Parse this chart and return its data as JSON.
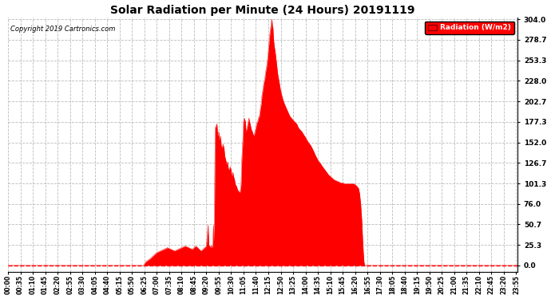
{
  "title": "Solar Radiation per Minute (24 Hours) 20191119",
  "copyright_text": "Copyright 2019 Cartronics.com",
  "legend_label": "Radiation (W/m2)",
  "fill_color": "#FF0000",
  "line_color": "#FF0000",
  "background_color": "#FFFFFF",
  "grid_color": "#AAAAAA",
  "y_ticks": [
    0.0,
    25.3,
    50.7,
    76.0,
    101.3,
    126.7,
    152.0,
    177.3,
    202.7,
    228.0,
    253.3,
    278.7,
    304.0
  ],
  "y_max": 304.0,
  "total_minutes": 1440,
  "dashed_hline_color": "#FF0000",
  "keypoints": [
    [
      0,
      0
    ],
    [
      384,
      0
    ],
    [
      385,
      2
    ],
    [
      390,
      5
    ],
    [
      400,
      8
    ],
    [
      410,
      12
    ],
    [
      420,
      16
    ],
    [
      430,
      18
    ],
    [
      440,
      20
    ],
    [
      450,
      22
    ],
    [
      460,
      20
    ],
    [
      470,
      18
    ],
    [
      480,
      20
    ],
    [
      490,
      22
    ],
    [
      500,
      24
    ],
    [
      510,
      22
    ],
    [
      520,
      20
    ],
    [
      525,
      22
    ],
    [
      530,
      24
    ],
    [
      535,
      22
    ],
    [
      540,
      20
    ],
    [
      545,
      18
    ],
    [
      550,
      20
    ],
    [
      555,
      22
    ],
    [
      560,
      24
    ],
    [
      565,
      50
    ],
    [
      567,
      25
    ],
    [
      570,
      24
    ],
    [
      572,
      22
    ],
    [
      575,
      25
    ],
    [
      577,
      22
    ],
    [
      578,
      24
    ],
    [
      580,
      50
    ],
    [
      582,
      30
    ],
    [
      585,
      170
    ],
    [
      590,
      175
    ],
    [
      592,
      160
    ],
    [
      595,
      165
    ],
    [
      597,
      155
    ],
    [
      600,
      160
    ],
    [
      602,
      148
    ],
    [
      605,
      145
    ],
    [
      607,
      150
    ],
    [
      610,
      145
    ],
    [
      612,
      135
    ],
    [
      615,
      130
    ],
    [
      617,
      125
    ],
    [
      620,
      128
    ],
    [
      622,
      120
    ],
    [
      625,
      118
    ],
    [
      627,
      122
    ],
    [
      630,
      118
    ],
    [
      632,
      110
    ],
    [
      635,
      115
    ],
    [
      637,
      110
    ],
    [
      640,
      105
    ],
    [
      642,
      100
    ],
    [
      645,
      98
    ],
    [
      647,
      95
    ],
    [
      650,
      92
    ],
    [
      655,
      90
    ],
    [
      658,
      100
    ],
    [
      660,
      130
    ],
    [
      663,
      155
    ],
    [
      665,
      178
    ],
    [
      667,
      182
    ],
    [
      670,
      178
    ],
    [
      672,
      165
    ],
    [
      675,
      170
    ],
    [
      677,
      175
    ],
    [
      680,
      182
    ],
    [
      682,
      178
    ],
    [
      685,
      172
    ],
    [
      687,
      168
    ],
    [
      690,
      165
    ],
    [
      692,
      162
    ],
    [
      695,
      160
    ],
    [
      697,
      165
    ],
    [
      700,
      170
    ],
    [
      702,
      175
    ],
    [
      705,
      178
    ],
    [
      707,
      182
    ],
    [
      710,
      185
    ],
    [
      712,
      192
    ],
    [
      715,
      200
    ],
    [
      717,
      210
    ],
    [
      720,
      218
    ],
    [
      722,
      225
    ],
    [
      725,
      230
    ],
    [
      727,
      238
    ],
    [
      730,
      245
    ],
    [
      733,
      255
    ],
    [
      735,
      265
    ],
    [
      737,
      275
    ],
    [
      739,
      285
    ],
    [
      741,
      292
    ],
    [
      743,
      298
    ],
    [
      744,
      302
    ],
    [
      745,
      304
    ],
    [
      746,
      300
    ],
    [
      747,
      290
    ],
    [
      748,
      295
    ],
    [
      749,
      285
    ],
    [
      750,
      278
    ],
    [
      752,
      270
    ],
    [
      754,
      265
    ],
    [
      756,
      258
    ],
    [
      758,
      250
    ],
    [
      760,
      242
    ],
    [
      762,
      235
    ],
    [
      765,
      228
    ],
    [
      768,
      220
    ],
    [
      770,
      215
    ],
    [
      773,
      210
    ],
    [
      776,
      205
    ],
    [
      780,
      200
    ],
    [
      785,
      195
    ],
    [
      790,
      190
    ],
    [
      795,
      185
    ],
    [
      800,
      182
    ],
    [
      808,
      178
    ],
    [
      815,
      175
    ],
    [
      820,
      170
    ],
    [
      830,
      165
    ],
    [
      840,
      158
    ],
    [
      848,
      152
    ],
    [
      855,
      148
    ],
    [
      862,
      142
    ],
    [
      868,
      136
    ],
    [
      875,
      130
    ],
    [
      882,
      126
    ],
    [
      888,
      122
    ],
    [
      895,
      118
    ],
    [
      900,
      115
    ],
    [
      905,
      112
    ],
    [
      910,
      110
    ],
    [
      915,
      108
    ],
    [
      920,
      106
    ],
    [
      925,
      105
    ],
    [
      930,
      104
    ],
    [
      935,
      103
    ],
    [
      940,
      102
    ],
    [
      945,
      102
    ],
    [
      950,
      101
    ],
    [
      955,
      101
    ],
    [
      960,
      101
    ],
    [
      965,
      101
    ],
    [
      970,
      101
    ],
    [
      975,
      101
    ],
    [
      980,
      100
    ],
    [
      985,
      98
    ],
    [
      990,
      95
    ],
    [
      993,
      88
    ],
    [
      996,
      75
    ],
    [
      999,
      55
    ],
    [
      1001,
      35
    ],
    [
      1003,
      18
    ],
    [
      1005,
      5
    ],
    [
      1007,
      0
    ],
    [
      1439,
      0
    ]
  ]
}
